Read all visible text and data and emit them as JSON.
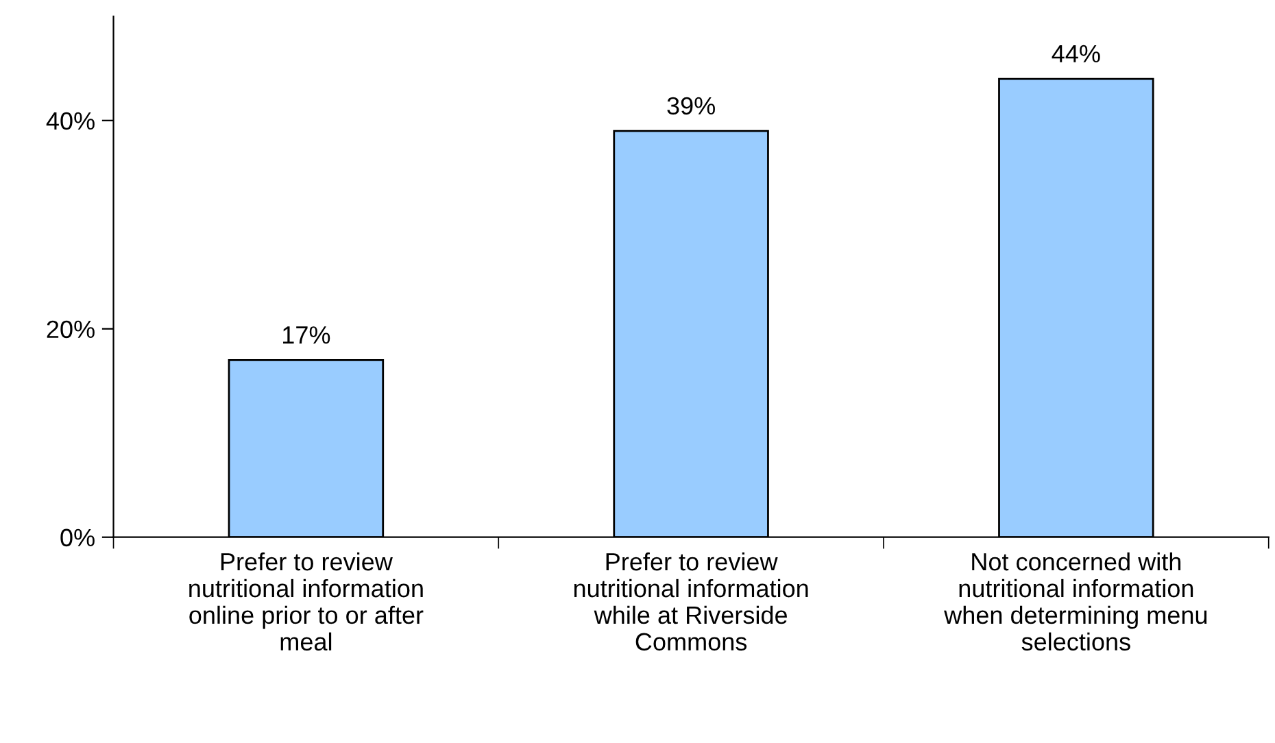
{
  "chart_data": {
    "type": "bar",
    "categories": [
      "Prefer to review\nnutritional information\nonline prior to or after\nmeal",
      "Prefer to review\nnutritional information\nwhile at Riverside\nCommons",
      "Not concerned with\nnutritional information\nwhen determining menu\nselections"
    ],
    "values": [
      17,
      39,
      44
    ],
    "value_labels": [
      "17%",
      "39%",
      "44%"
    ],
    "color": "#99ccff",
    "ylim": [
      0,
      50
    ],
    "yticks": [
      {
        "value": 0,
        "label": "0%"
      },
      {
        "value": 20,
        "label": "20%"
      },
      {
        "value": 40,
        "label": "40%"
      }
    ],
    "grid": false
  }
}
